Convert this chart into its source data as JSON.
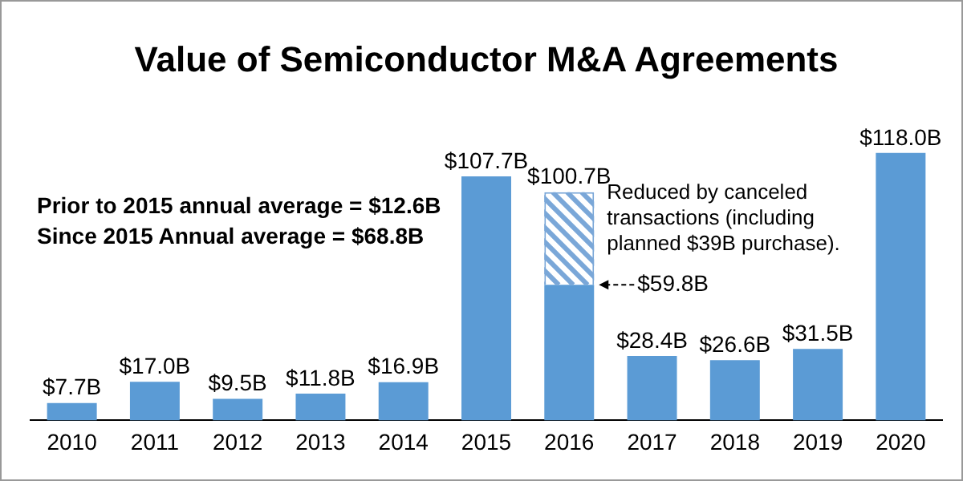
{
  "chart_data": {
    "type": "bar",
    "title": "Value of Semiconductor M&A Agreements",
    "stacked": true,
    "legend": false,
    "grid": false,
    "categories": [
      "2010",
      "2011",
      "2012",
      "2013",
      "2014",
      "2015",
      "2016",
      "2017",
      "2018",
      "2019",
      "2020"
    ],
    "series": [
      {
        "color": "#5b9bd5",
        "values": [
          7.7,
          17.0,
          9.5,
          11.8,
          16.9,
          107.7,
          59.8,
          28.4,
          26.6,
          31.5,
          118.0
        ],
        "value_labels": [
          "$7.7B",
          "$17.0B",
          "$9.5B",
          "$11.8B",
          "$16.9B",
          "$107.7B",
          "$59.8B",
          "$28.4B",
          "$26.6B",
          "$31.5B",
          "$118.0B"
        ]
      },
      {
        "color": "#7aa7d8",
        "values": [
          null,
          null,
          null,
          null,
          null,
          null,
          40.9,
          null,
          null,
          null,
          null
        ]
      }
    ],
    "totals": [
      null,
      null,
      null,
      null,
      null,
      null,
      "$100.7B",
      null,
      null,
      null,
      null
    ],
    "annotations": [
      "Prior to 2015 annual average = $12.6B",
      "Since 2015 Annual average = $68.8B",
      {
        "text": "Reduced by canceled transactions (including planned $39B purchase).",
        "x": "2016",
        "y": 100.7
      }
    ]
  }
}
